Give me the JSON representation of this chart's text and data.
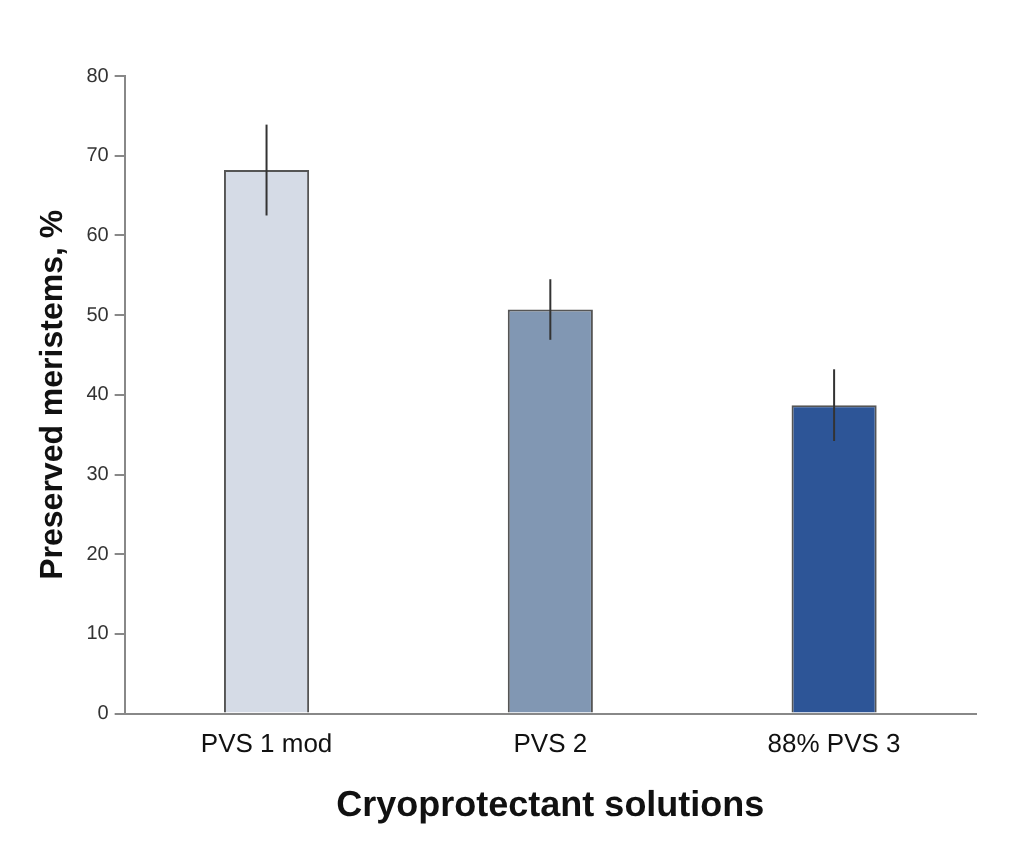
{
  "chart_data": {
    "type": "bar",
    "xlabel": "Cryoprotectant solutions",
    "ylabel": "Preserved meristems, %",
    "categories": [
      "PVS 1 mod",
      "PVS 2",
      "88% PVS 3"
    ],
    "values": [
      68.2,
      50.7,
      38.7
    ],
    "errors": [
      5.7,
      3.8,
      4.5
    ],
    "colors": [
      "#d5dbe6",
      "#8197b3",
      "#2d5597"
    ],
    "ylim": [
      0,
      80
    ],
    "yticks": [
      0,
      10,
      20,
      30,
      40,
      50,
      60,
      70,
      80
    ],
    "grid": false
  }
}
